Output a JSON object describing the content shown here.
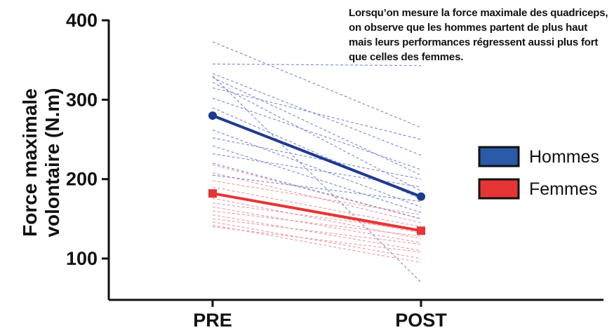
{
  "chart_data": {
    "type": "line",
    "categories": [
      "PRE",
      "POST"
    ],
    "ylim": [
      60,
      400
    ],
    "yticks": [
      100,
      200,
      300,
      400
    ],
    "ylabel_lines": [
      "Force maximale",
      "volontaire (N.m)"
    ],
    "series": [
      {
        "name": "Hommes",
        "color": "#1f3a8f",
        "marker": "circle",
        "values": [
          280,
          178
        ]
      },
      {
        "name": "Femmes",
        "color": "#e53535",
        "marker": "square",
        "values": [
          182,
          135
        ]
      }
    ],
    "individuals": {
      "Hommes": [
        [
          373,
          265
        ],
        [
          345,
          343
        ],
        [
          333,
          230
        ],
        [
          330,
          70
        ],
        [
          328,
          205
        ],
        [
          322,
          185
        ],
        [
          315,
          250
        ],
        [
          302,
          212
        ],
        [
          290,
          175
        ],
        [
          262,
          165
        ],
        [
          252,
          200
        ],
        [
          242,
          158
        ],
        [
          232,
          190
        ],
        [
          220,
          150
        ],
        [
          205,
          172
        ]
      ],
      "Femmes": [
        [
          218,
          150
        ],
        [
          208,
          145
        ],
        [
          198,
          155
        ],
        [
          190,
          140
        ],
        [
          182,
          132
        ],
        [
          176,
          125
        ],
        [
          170,
          135
        ],
        [
          165,
          120
        ],
        [
          160,
          128
        ],
        [
          155,
          110
        ],
        [
          150,
          118
        ],
        [
          146,
          100
        ],
        [
          142,
          95
        ],
        [
          140,
          108
        ]
      ]
    },
    "annotation": "Lorsqu’on mesure la force maximale des quadriceps, on observe que les hommes partent de plus haut mais leurs performances régressent aussi plus fort que celles des femmes."
  }
}
